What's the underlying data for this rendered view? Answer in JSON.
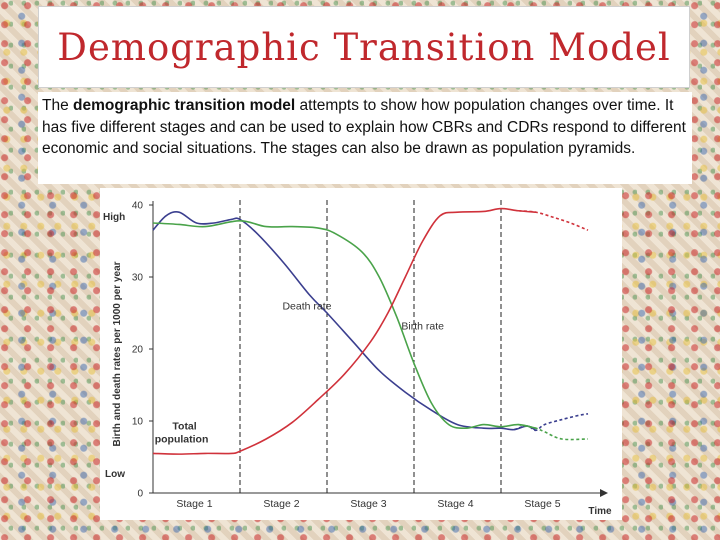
{
  "page": {
    "title": "Demographic Transition Model",
    "description": {
      "part1": "The ",
      "bold": "demographic transition model",
      "part2": " attempts to show how population changes over time.  It has five different stages and can be used to explain how CBRs and CDRs respond to different economic and social situations. The stages can also be drawn as population pyramids."
    }
  },
  "colors": {
    "title": "#c0282d",
    "death_rate": "#3b3f8f",
    "birth_rate": "#4aa34a",
    "total_population": "#d0323b"
  },
  "chart_data": {
    "type": "line",
    "title": "",
    "xlabel": "Time",
    "ylabel": "Birth and death rates per 1000 per year",
    "ylim": [
      0,
      40
    ],
    "xlim": [
      0,
      5
    ],
    "yticks": [
      0,
      10,
      20,
      30,
      40
    ],
    "y_level_labels": {
      "high": "High",
      "low": "Low"
    },
    "stages": [
      "Stage 1",
      "Stage 2",
      "Stage 3",
      "Stage 4",
      "Stage 5"
    ],
    "stage_boundaries": [
      1,
      2,
      3,
      4
    ],
    "grid": false,
    "series": [
      {
        "name": "Death rate",
        "color_key": "death_rate",
        "points": [
          [
            0,
            36.5
          ],
          [
            0.15,
            38.5
          ],
          [
            0.3,
            39
          ],
          [
            0.5,
            37.5
          ],
          [
            0.7,
            37.5
          ],
          [
            0.9,
            38
          ],
          [
            1.0,
            38
          ],
          [
            1.2,
            36
          ],
          [
            1.5,
            32
          ],
          [
            1.8,
            27.5
          ],
          [
            2.0,
            25
          ],
          [
            2.3,
            21
          ],
          [
            2.6,
            17
          ],
          [
            2.9,
            14
          ],
          [
            3.2,
            11.5
          ],
          [
            3.5,
            9.5
          ],
          [
            3.8,
            9
          ],
          [
            4.0,
            9
          ],
          [
            4.15,
            8.8
          ],
          [
            4.3,
            9.3
          ],
          [
            4.4,
            8.7
          ],
          [
            4.5,
            9.5
          ],
          [
            4.7,
            10.2
          ],
          [
            4.9,
            10.8
          ],
          [
            5.0,
            11
          ]
        ],
        "dashed_from": 4.45
      },
      {
        "name": "Birth rate",
        "color_key": "birth_rate",
        "points": [
          [
            0,
            37.5
          ],
          [
            0.3,
            37.3
          ],
          [
            0.6,
            37
          ],
          [
            1.0,
            37.8
          ],
          [
            1.3,
            37
          ],
          [
            1.6,
            37
          ],
          [
            1.9,
            36.8
          ],
          [
            2.1,
            36
          ],
          [
            2.4,
            33.5
          ],
          [
            2.6,
            30
          ],
          [
            2.8,
            24.5
          ],
          [
            3.0,
            18
          ],
          [
            3.2,
            12.5
          ],
          [
            3.4,
            9.5
          ],
          [
            3.6,
            9
          ],
          [
            3.8,
            9.5
          ],
          [
            4.0,
            9.2
          ],
          [
            4.2,
            9.5
          ],
          [
            4.4,
            9
          ],
          [
            4.5,
            8.5
          ],
          [
            4.7,
            7.5
          ],
          [
            5.0,
            7.5
          ]
        ],
        "dashed_from": 4.45
      },
      {
        "name": "Total population",
        "color_key": "total_population",
        "points": [
          [
            0,
            5.5
          ],
          [
            0.3,
            5.4
          ],
          [
            0.6,
            5.5
          ],
          [
            0.9,
            5.5
          ],
          [
            1.0,
            5.8
          ],
          [
            1.3,
            7.5
          ],
          [
            1.6,
            9.8
          ],
          [
            1.9,
            13
          ],
          [
            2.2,
            16.5
          ],
          [
            2.5,
            21
          ],
          [
            2.7,
            25
          ],
          [
            2.9,
            30
          ],
          [
            3.1,
            35
          ],
          [
            3.3,
            38.5
          ],
          [
            3.5,
            39
          ],
          [
            3.8,
            39.1
          ],
          [
            4.0,
            39.5
          ],
          [
            4.2,
            39.2
          ],
          [
            4.4,
            39
          ],
          [
            4.6,
            38.3
          ],
          [
            4.8,
            37.5
          ],
          [
            5.0,
            36.5
          ]
        ],
        "dashed_from": 4.45
      }
    ],
    "annotations": {
      "death_rate": "Death rate",
      "birth_rate": "Birth rate",
      "total_population_line1": "Total",
      "total_population_line2": "population"
    }
  }
}
